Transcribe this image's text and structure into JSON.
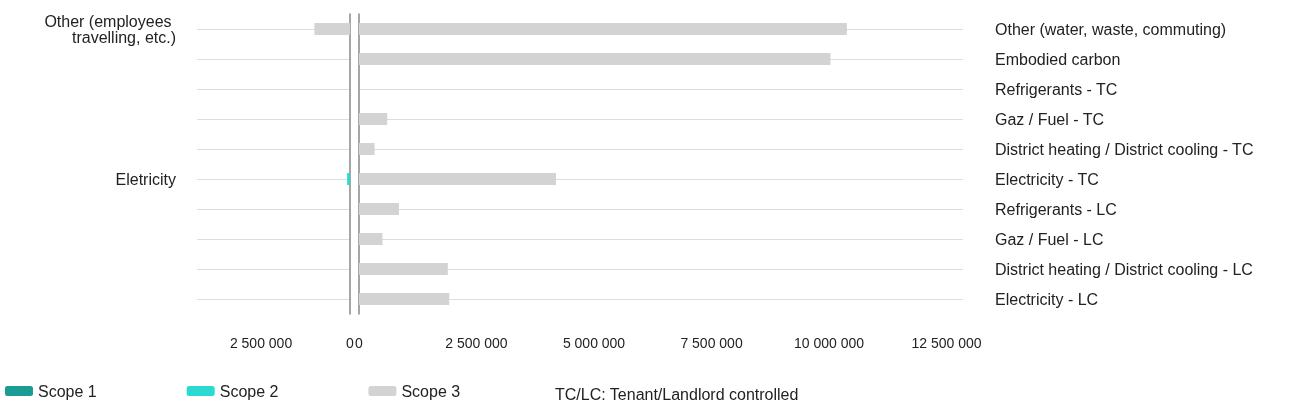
{
  "chart_data": [
    {
      "type": "bar",
      "orientation": "horizontal",
      "categories": [
        "Other (employees travelling, etc.)",
        null,
        null,
        null,
        null,
        "Eletricity",
        null,
        null,
        null,
        null
      ],
      "series": [
        {
          "name": "Scope 1",
          "color": "#1a9c94",
          "values": [
            null,
            null,
            null,
            null,
            null,
            null,
            null,
            null,
            null,
            null
          ]
        },
        {
          "name": "Scope 2",
          "color": "#2ad9d2",
          "values": [
            null,
            null,
            null,
            null,
            null,
            80000,
            null,
            null,
            null,
            null
          ]
        },
        {
          "name": "Scope 3",
          "color": "#d3d3d3",
          "values": [
            1000000,
            null,
            null,
            null,
            null,
            null,
            null,
            null,
            null,
            null
          ]
        }
      ],
      "xlim": [
        4300000,
        0
      ],
      "xticks": [
        {
          "value": 2500000,
          "label": "2 500 000"
        },
        0
      ],
      "grid": "y",
      "legend": "bottom left",
      "annotations": [
        "TC/LC: Tenant/Landlord controlled"
      ]
    },
    {
      "type": "bar",
      "orientation": "horizontal",
      "categories": [
        "Other (water, waste, commuting)",
        "Embodied carbon",
        "Refrigerants - TC",
        "Gaz / Fuel - TC",
        "District heating / District cooling - TC",
        "Electricity - TC",
        "Refrigerants - LC",
        "Gaz / Fuel - LC",
        "District heating / District cooling - LC",
        "Electricity - LC"
      ],
      "series": [
        {
          "color": "#d3d3d3",
          "values": [
            10380000,
            10030000,
            0,
            600000,
            330000,
            4190000,
            850000,
            500000,
            1890000,
            1920000
          ]
        }
      ],
      "xlim": [
        0,
        12850000
      ],
      "xticks": [
        0,
        {
          "value": 2500000,
          "label": "2 500 000"
        },
        {
          "value": 5000000,
          "label": "5 000 000"
        },
        {
          "value": 7500000,
          "label": "7 500 000"
        },
        {
          "value": 10000000,
          "label": "10 000 000"
        },
        {
          "value": 12500000,
          "label": "12 500 000"
        }
      ],
      "grid": "y"
    }
  ]
}
